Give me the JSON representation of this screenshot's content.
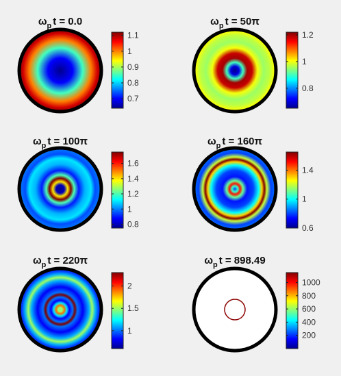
{
  "colormap": [
    "#00008f",
    "#0000ff",
    "#0080ff",
    "#00ffff",
    "#80ff80",
    "#ffff00",
    "#ff8000",
    "#ff0000",
    "#800000"
  ],
  "disk_border_color": "#000000",
  "chart_data": [
    {
      "type": "heatmap",
      "title_symbol": "ω",
      "title_sub": "p",
      "title_text": "t = 0.0",
      "clim": [
        0.64,
        1.12
      ],
      "colorbar_ticks": [
        0.7,
        0.8,
        0.9,
        1,
        1.1
      ],
      "colorbar_tick_labels": [
        "0.7",
        "0.8",
        "0.9",
        "1",
        "1.1"
      ],
      "radial_profile": [
        [
          0,
          0.64
        ],
        [
          0.3,
          0.7
        ],
        [
          0.55,
          0.85
        ],
        [
          0.75,
          1.0
        ],
        [
          0.9,
          1.08
        ],
        [
          1.0,
          1.12
        ]
      ]
    },
    {
      "type": "heatmap",
      "title_symbol": "ω",
      "title_sub": "p",
      "title_text": "t = 50π",
      "clim": [
        0.65,
        1.22
      ],
      "colorbar_ticks": [
        0.8,
        1,
        1.2
      ],
      "colorbar_tick_labels": [
        "0.8",
        "1",
        "1.2"
      ],
      "radial_profile": [
        [
          0,
          0.65
        ],
        [
          0.1,
          0.7
        ],
        [
          0.2,
          0.9
        ],
        [
          0.3,
          1.2
        ],
        [
          0.42,
          1.18
        ],
        [
          0.55,
          1.0
        ],
        [
          0.7,
          0.95
        ],
        [
          0.85,
          0.97
        ],
        [
          0.95,
          1.0
        ],
        [
          1.0,
          1.02
        ]
      ]
    },
    {
      "type": "heatmap",
      "title_symbol": "ω",
      "title_sub": "p",
      "title_text": "t = 100π",
      "clim": [
        0.75,
        1.75
      ],
      "colorbar_ticks": [
        0.8,
        1,
        1.2,
        1.4,
        1.6
      ],
      "colorbar_tick_labels": [
        "0.8",
        "1",
        "1.2",
        "1.4",
        "1.6"
      ],
      "radial_profile": [
        [
          0,
          0.75
        ],
        [
          0.1,
          0.8
        ],
        [
          0.18,
          1.4
        ],
        [
          0.26,
          1.75
        ],
        [
          0.34,
          1.2
        ],
        [
          0.45,
          0.9
        ],
        [
          0.6,
          1.05
        ],
        [
          0.75,
          1.1
        ],
        [
          0.85,
          0.95
        ],
        [
          1.0,
          1.0
        ]
      ]
    },
    {
      "type": "heatmap",
      "title_symbol": "ω",
      "title_sub": "p",
      "title_text": "t = 160π",
      "clim": [
        0.6,
        1.65
      ],
      "colorbar_ticks": [
        0.6,
        1,
        1.4
      ],
      "colorbar_tick_labels": [
        "0.6",
        "1",
        "1.4"
      ],
      "radial_profile": [
        [
          0,
          0.8
        ],
        [
          0.07,
          1.05
        ],
        [
          0.13,
          1.5
        ],
        [
          0.2,
          1.1
        ],
        [
          0.3,
          0.75
        ],
        [
          0.45,
          0.8
        ],
        [
          0.58,
          1.0
        ],
        [
          0.66,
          1.3
        ],
        [
          0.72,
          1.65
        ],
        [
          0.78,
          1.2
        ],
        [
          0.88,
          0.8
        ],
        [
          1.0,
          0.85
        ]
      ]
    },
    {
      "type": "heatmap",
      "title_symbol": "ω",
      "title_sub": "p",
      "title_text": "t = 220π",
      "clim": [
        0.6,
        2.3
      ],
      "colorbar_ticks": [
        1,
        1.5,
        2
      ],
      "colorbar_tick_labels": [
        "1",
        "1.5",
        "2"
      ],
      "radial_profile": [
        [
          0,
          1.5
        ],
        [
          0.05,
          1.5
        ],
        [
          0.1,
          1.9
        ],
        [
          0.16,
          1.2
        ],
        [
          0.22,
          0.8
        ],
        [
          0.3,
          1.0
        ],
        [
          0.36,
          2.3
        ],
        [
          0.42,
          1.0
        ],
        [
          0.55,
          0.8
        ],
        [
          0.7,
          1.1
        ],
        [
          0.78,
          1.5
        ],
        [
          0.86,
          1.1
        ],
        [
          0.94,
          0.9
        ],
        [
          1.0,
          0.95
        ]
      ]
    },
    {
      "type": "heatmap",
      "title_symbol": "ω",
      "title_sub": "p",
      "title_text": "t = 898.49",
      "clim": [
        0,
        1150
      ],
      "colorbar_ticks": [
        200,
        400,
        600,
        800,
        1000
      ],
      "colorbar_tick_labels": [
        "200",
        "400",
        "600",
        "800",
        "1000"
      ],
      "ring_radius_fraction": 0.25,
      "ring_color": "#8b0000",
      "background_color": "#ffffff"
    }
  ]
}
